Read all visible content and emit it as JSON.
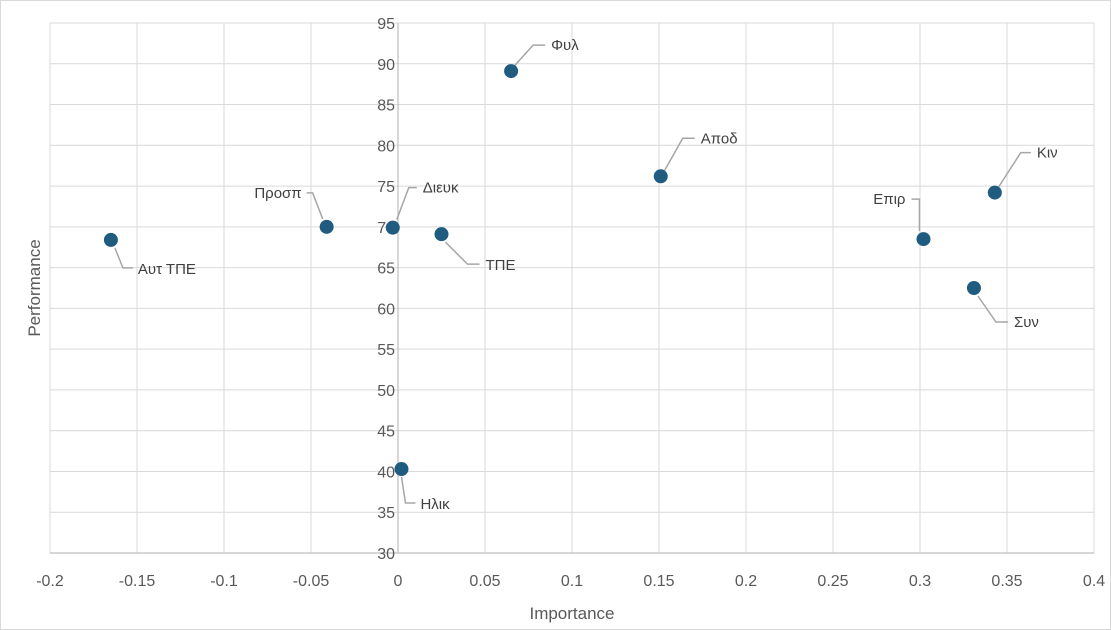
{
  "chart_data": {
    "type": "scatter",
    "title": "",
    "xlabel": "Importance",
    "ylabel": "Performance",
    "xlim": [
      -0.2,
      0.4
    ],
    "ylim": [
      30,
      95
    ],
    "x_ticks": [
      "-0.2",
      "-0.15",
      "-0.1",
      "-0.05",
      "0",
      "0.05",
      "0.1",
      "0.15",
      "0.2",
      "0.25",
      "0.3",
      "0.35",
      "0.4"
    ],
    "y_ticks": [
      "30",
      "35",
      "40",
      "45",
      "50",
      "55",
      "60",
      "65",
      "70",
      "75",
      "80",
      "85",
      "90",
      "95"
    ],
    "grid": true,
    "marker_color": "#1F5C7F",
    "grid_color": "#D9D9D9",
    "points": [
      {
        "label": "Φυλ",
        "x": 0.065,
        "y": 89.1
      },
      {
        "label": "Αποδ",
        "x": 0.151,
        "y": 76.2
      },
      {
        "label": "Κιν",
        "x": 0.343,
        "y": 74.2
      },
      {
        "label": "Επιρ",
        "x": 0.302,
        "y": 68.5
      },
      {
        "label": "Συν",
        "x": 0.331,
        "y": 62.5
      },
      {
        "label": "Προσπ",
        "x": -0.041,
        "y": 70.0
      },
      {
        "label": "Διευκ",
        "x": -0.003,
        "y": 69.9
      },
      {
        "label": "ΤΠΕ",
        "x": 0.025,
        "y": 69.1
      },
      {
        "label": "Αυτ ΤΠΕ",
        "x": -0.165,
        "y": 68.4
      },
      {
        "label": "Ηλικ",
        "x": 0.002,
        "y": 40.3
      }
    ]
  }
}
